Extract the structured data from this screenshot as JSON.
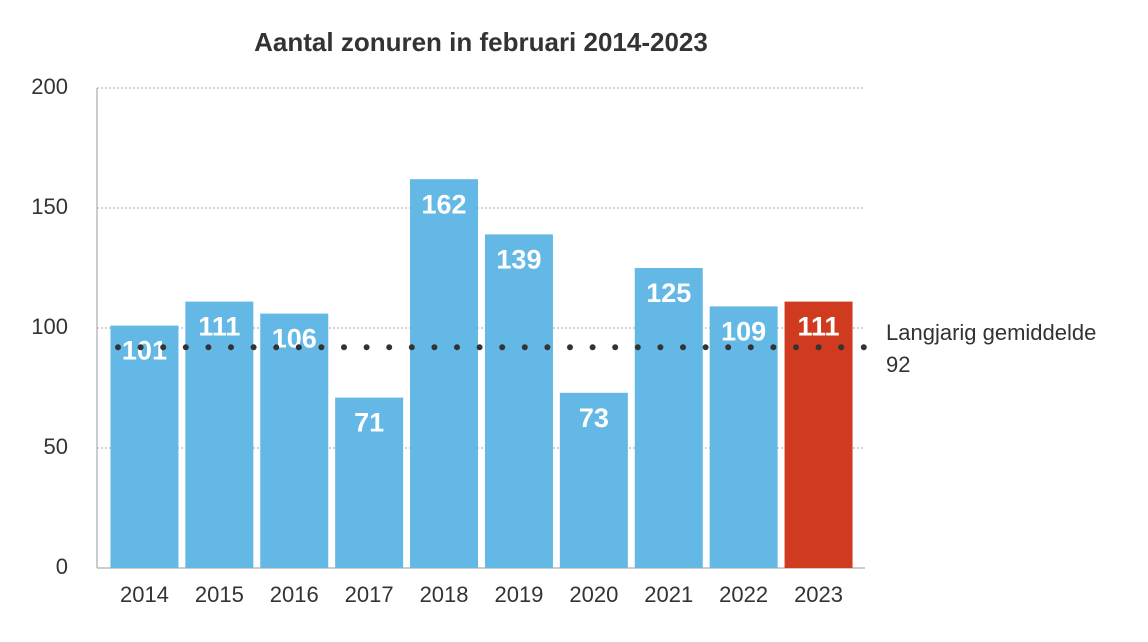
{
  "chart_data": {
    "type": "bar",
    "title": "Aantal zonuren in februari 2014-2023",
    "categories": [
      "2014",
      "2015",
      "2016",
      "2017",
      "2018",
      "2019",
      "2020",
      "2021",
      "2022",
      "2023"
    ],
    "values": [
      101,
      111,
      106,
      71,
      162,
      139,
      73,
      125,
      109,
      111
    ],
    "colors": [
      "#63b8e6",
      "#63b8e6",
      "#63b8e6",
      "#63b8e6",
      "#63b8e6",
      "#63b8e6",
      "#63b8e6",
      "#63b8e6",
      "#63b8e6",
      "#d03a1f"
    ],
    "ylim": [
      0,
      200
    ],
    "yticks": [
      0,
      50,
      100,
      150,
      200
    ],
    "grid": true,
    "reference_line": {
      "value": 92,
      "label": "Langjarig gemiddelde"
    }
  }
}
